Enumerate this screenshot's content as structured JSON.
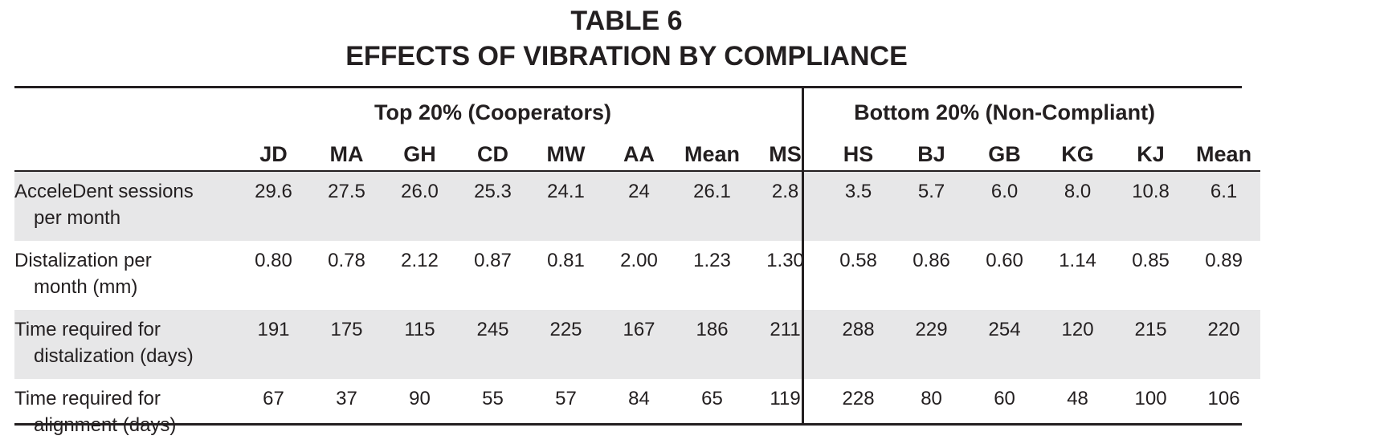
{
  "title": {
    "line1": "TABLE 6",
    "line2": "EFFECTS OF VIBRATION BY COMPLIANCE"
  },
  "groups": {
    "top": "Top 20% (Cooperators)",
    "bottom": "Bottom 20% (Non-Compliant)"
  },
  "columns": [
    "JD",
    "MA",
    "GH",
    "CD",
    "MW",
    "AA",
    "Mean",
    "MS",
    "HS",
    "BJ",
    "GB",
    "KG",
    "KJ",
    "Mean"
  ],
  "rows": [
    {
      "label1": "AcceleDent sessions",
      "label2": "per month",
      "values": [
        "29.6",
        "27.5",
        "26.0",
        "25.3",
        "24.1",
        "24",
        "26.1",
        "2.8",
        "3.5",
        "5.7",
        "6.0",
        "8.0",
        "10.8",
        "6.1"
      ]
    },
    {
      "label1": "Distalization per",
      "label2": "month (mm)",
      "values": [
        "0.80",
        "0.78",
        "2.12",
        "0.87",
        "0.81",
        "2.00",
        "1.23",
        "1.30",
        "0.58",
        "0.86",
        "0.60",
        "1.14",
        "0.85",
        "0.89"
      ]
    },
    {
      "label1": "Time required for",
      "label2": "distalization (days)",
      "values": [
        "191",
        "175",
        "115",
        "245",
        "225",
        "167",
        "186",
        "211",
        "288",
        "229",
        "254",
        "120",
        "215",
        "220"
      ]
    },
    {
      "label1": "Time required for",
      "label2": "alignment (days)",
      "values": [
        "67",
        "37",
        "90",
        "55",
        "57",
        "84",
        "65",
        "119",
        "228",
        "80",
        "60",
        "48",
        "100",
        "106"
      ]
    }
  ]
}
